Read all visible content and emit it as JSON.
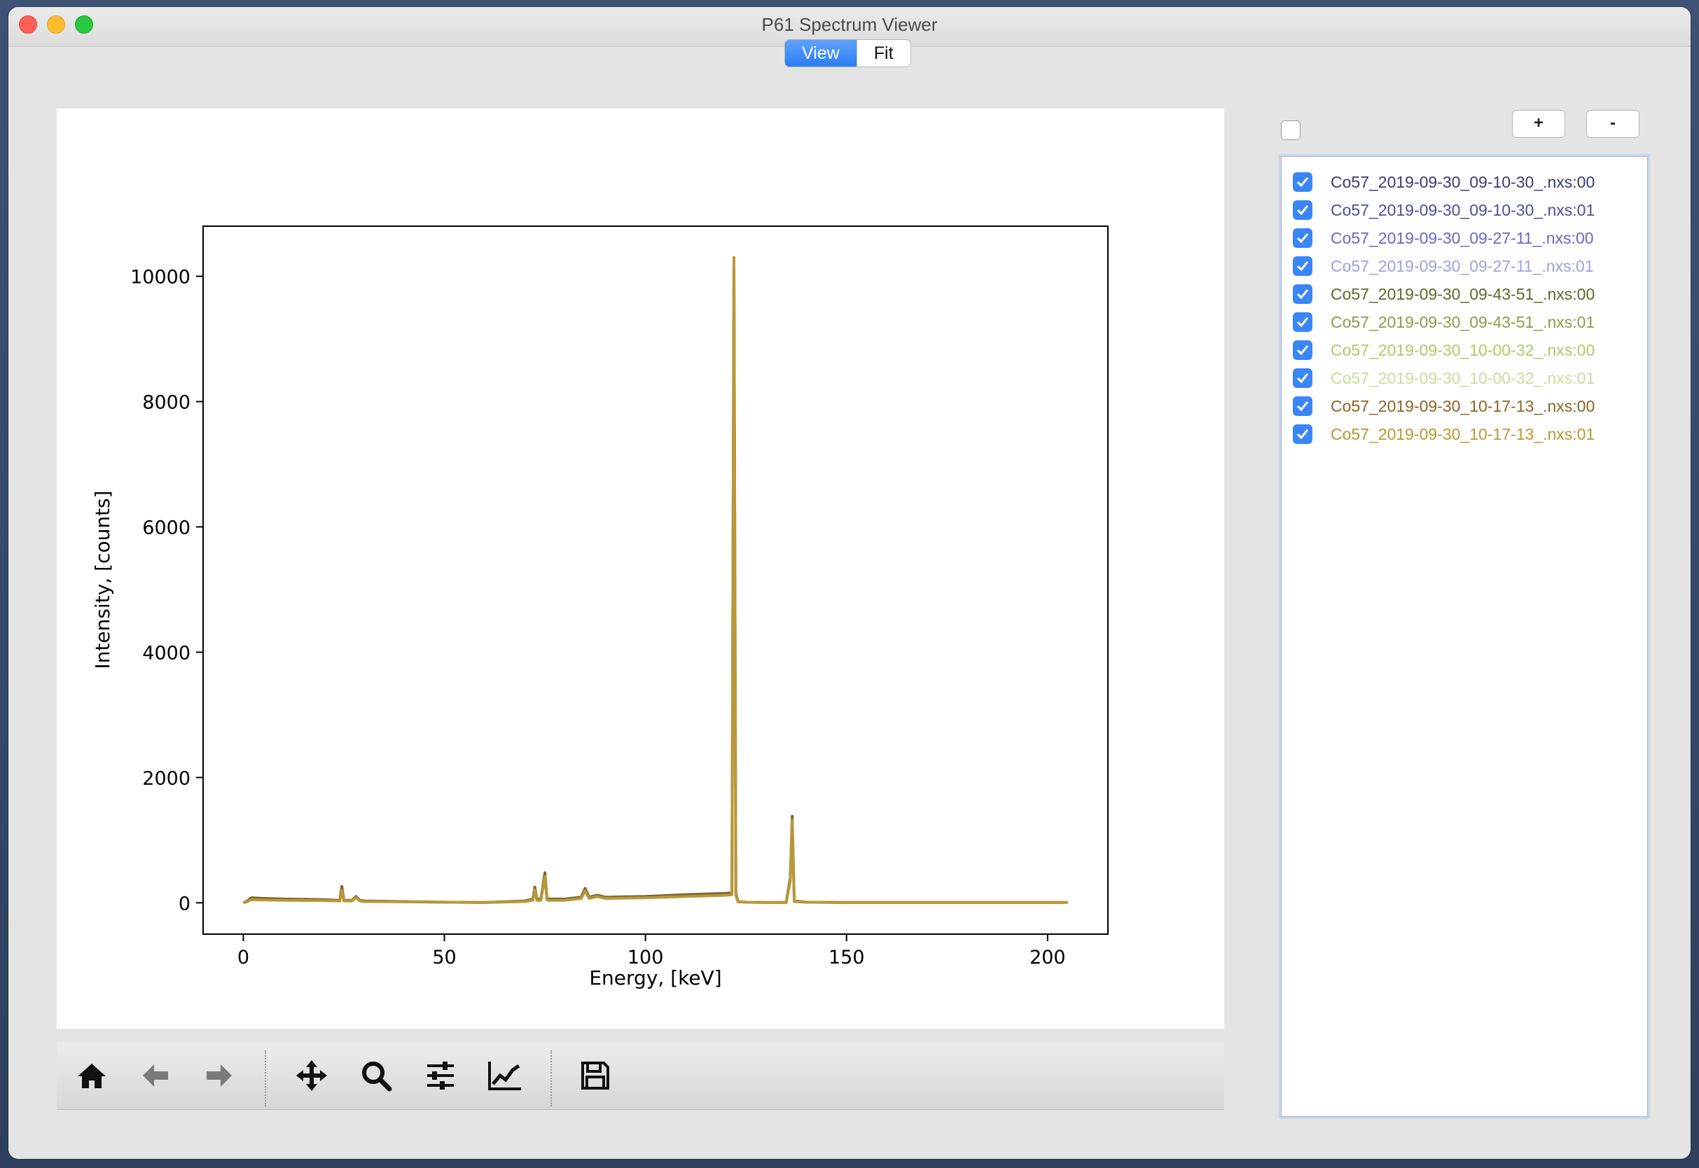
{
  "window": {
    "title": "P61 Spectrum Viewer"
  },
  "tabs": [
    {
      "label": "View",
      "active": true
    },
    {
      "label": "Fit",
      "active": false
    }
  ],
  "toolbar": {
    "icons": [
      "home-icon",
      "back-arrow-icon",
      "forward-arrow-icon",
      "pan-icon",
      "zoom-icon",
      "subplots-config-icon",
      "axes-edit-icon",
      "save-icon"
    ]
  },
  "file_list": {
    "select_all_checked": false,
    "add_label": "+",
    "remove_label": "-",
    "items": [
      {
        "label": "Co57_2019-09-30_09-10-30_.nxs:00",
        "checked": true,
        "color": "#3a3c70"
      },
      {
        "label": "Co57_2019-09-30_09-10-30_.nxs:01",
        "checked": true,
        "color": "#4a4f9c"
      },
      {
        "label": "Co57_2019-09-30_09-27-11_.nxs:00",
        "checked": true,
        "color": "#6668c6"
      },
      {
        "label": "Co57_2019-09-30_09-27-11_.nxs:01",
        "checked": true,
        "color": "#9fa2dc"
      },
      {
        "label": "Co57_2019-09-30_09-43-51_.nxs:00",
        "checked": true,
        "color": "#5b6a2a"
      },
      {
        "label": "Co57_2019-09-30_09-43-51_.nxs:01",
        "checked": true,
        "color": "#87a04a"
      },
      {
        "label": "Co57_2019-09-30_10-00-32_.nxs:00",
        "checked": true,
        "color": "#afca65"
      },
      {
        "label": "Co57_2019-09-30_10-00-32_.nxs:01",
        "checked": true,
        "color": "#c9dc9c"
      },
      {
        "label": "Co57_2019-09-30_10-17-13_.nxs:00",
        "checked": true,
        "color": "#8b6525"
      },
      {
        "label": "Co57_2019-09-30_10-17-13_.nxs:01",
        "checked": true,
        "color": "#bc9734"
      }
    ]
  },
  "chart_data": {
    "type": "line",
    "xlabel": "Energy, [keV]",
    "ylabel": "Intensity, [counts]",
    "xlim": [
      -10,
      215
    ],
    "ylim": [
      -500,
      10800
    ],
    "xticks": [
      0,
      50,
      100,
      150,
      200
    ],
    "yticks": [
      0,
      2000,
      4000,
      6000,
      8000,
      10000
    ],
    "grid": false,
    "series": [
      {
        "color": "#7a6230",
        "x": [
          0,
          1,
          2,
          5,
          10,
          20,
          24,
          24.5,
          25,
          27,
          28,
          29,
          30,
          40,
          50,
          60,
          70,
          72,
          72.5,
          73,
          74,
          75,
          75.5,
          76,
          80,
          84,
          85,
          86,
          88,
          90,
          100,
          110,
          115,
          120,
          121.5,
          122,
          122.5,
          123,
          125,
          130,
          135,
          136,
          136.5,
          137,
          140,
          150,
          180,
          205
        ],
        "y": [
          0,
          30,
          80,
          70,
          60,
          50,
          40,
          260,
          40,
          40,
          100,
          40,
          30,
          20,
          10,
          5,
          30,
          60,
          250,
          60,
          60,
          480,
          70,
          60,
          60,
          90,
          230,
          90,
          120,
          90,
          100,
          130,
          140,
          150,
          160,
          10200,
          150,
          20,
          10,
          5,
          5,
          400,
          1380,
          30,
          10,
          5,
          5,
          5
        ]
      },
      {
        "color": "#b89838",
        "x": [
          0,
          1,
          2,
          5,
          10,
          20,
          24,
          24.5,
          25,
          27,
          28,
          29,
          30,
          40,
          50,
          60,
          70,
          72,
          72.5,
          73,
          74,
          75,
          75.5,
          76,
          80,
          84,
          85,
          86,
          88,
          90,
          100,
          110,
          115,
          120,
          121.5,
          122,
          122.5,
          123,
          125,
          130,
          135,
          136,
          136.5,
          137,
          140,
          150,
          180,
          205
        ],
        "y": [
          0,
          20,
          50,
          45,
          40,
          35,
          30,
          200,
          30,
          30,
          80,
          30,
          20,
          15,
          8,
          4,
          20,
          40,
          210,
          40,
          40,
          420,
          50,
          40,
          40,
          70,
          190,
          70,
          100,
          70,
          80,
          100,
          110,
          120,
          130,
          10300,
          120,
          15,
          8,
          4,
          4,
          350,
          1320,
          20,
          8,
          4,
          4,
          4
        ]
      }
    ]
  }
}
